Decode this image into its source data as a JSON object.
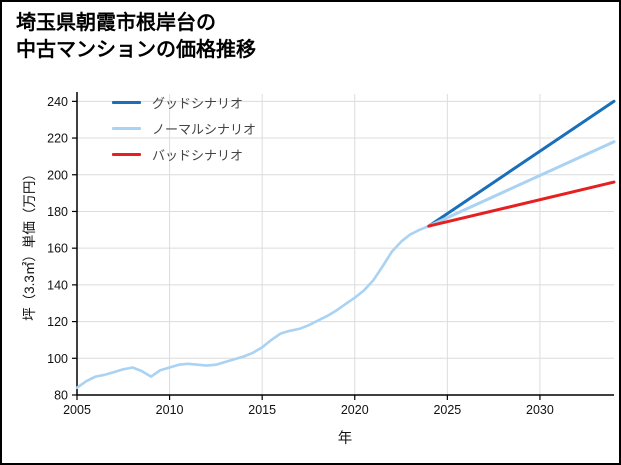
{
  "page": {
    "background": "#ffffff",
    "frame_border_color": "#000000"
  },
  "chart_data": {
    "type": "line",
    "title": "埼玉県朝霞市根岸台の\n中古マンションの価格推移",
    "xlabel": "年",
    "ylabel": "坪（3.3㎡）単価（万円）",
    "xlim": [
      2005,
      2034
    ],
    "ylim": [
      80,
      244
    ],
    "xticks": [
      2005,
      2010,
      2015,
      2020,
      2025,
      2030
    ],
    "yticks": [
      80,
      100,
      120,
      140,
      160,
      180,
      200,
      220,
      240
    ],
    "grid": true,
    "grid_color": "#dcdcdc",
    "axis_color": "#000000",
    "legend": {
      "position": "upper-left",
      "entries": [
        {
          "label": "グッドシナリオ",
          "color": "#1a6fba"
        },
        {
          "label": "ノーマルシナリオ",
          "color": "#a9d2f3"
        },
        {
          "label": "バッドシナリオ",
          "color": "#e62020"
        }
      ]
    },
    "series": [
      {
        "id": "history",
        "color": "#a9d2f3",
        "width": 2.6,
        "x": [
          2005,
          2005.5,
          2006,
          2006.5,
          2007,
          2007.5,
          2008,
          2008.5,
          2009,
          2009.5,
          2010,
          2010.5,
          2011,
          2011.5,
          2012,
          2012.5,
          2013,
          2013.5,
          2014,
          2014.5,
          2015,
          2015.5,
          2016,
          2016.5,
          2017,
          2017.5,
          2018,
          2018.5,
          2019,
          2019.5,
          2020,
          2020.5,
          2021,
          2021.5,
          2022,
          2022.5,
          2023,
          2023.5,
          2024
        ],
        "y": [
          84,
          87.5,
          90,
          91,
          92.5,
          94,
          95,
          93,
          90,
          93.5,
          95,
          96.5,
          97,
          96.5,
          96,
          96.5,
          98,
          99.5,
          101,
          103,
          106,
          110,
          113.5,
          115,
          116,
          118,
          120.5,
          123,
          126,
          129.5,
          133,
          137,
          142.5,
          150,
          158,
          163.5,
          167.5,
          170,
          172
        ]
      },
      {
        "id": "good",
        "label": "グッドシナリオ",
        "color": "#1a6fba",
        "width": 3,
        "x": [
          2024,
          2034
        ],
        "y": [
          172,
          240
        ]
      },
      {
        "id": "normal",
        "label": "ノーマルシナリオ",
        "color": "#a9d2f3",
        "width": 3,
        "x": [
          2024,
          2034
        ],
        "y": [
          172,
          218
        ]
      },
      {
        "id": "bad",
        "label": "バッドシナリオ",
        "color": "#e62020",
        "width": 3,
        "x": [
          2024,
          2034
        ],
        "y": [
          172,
          196
        ]
      }
    ]
  }
}
